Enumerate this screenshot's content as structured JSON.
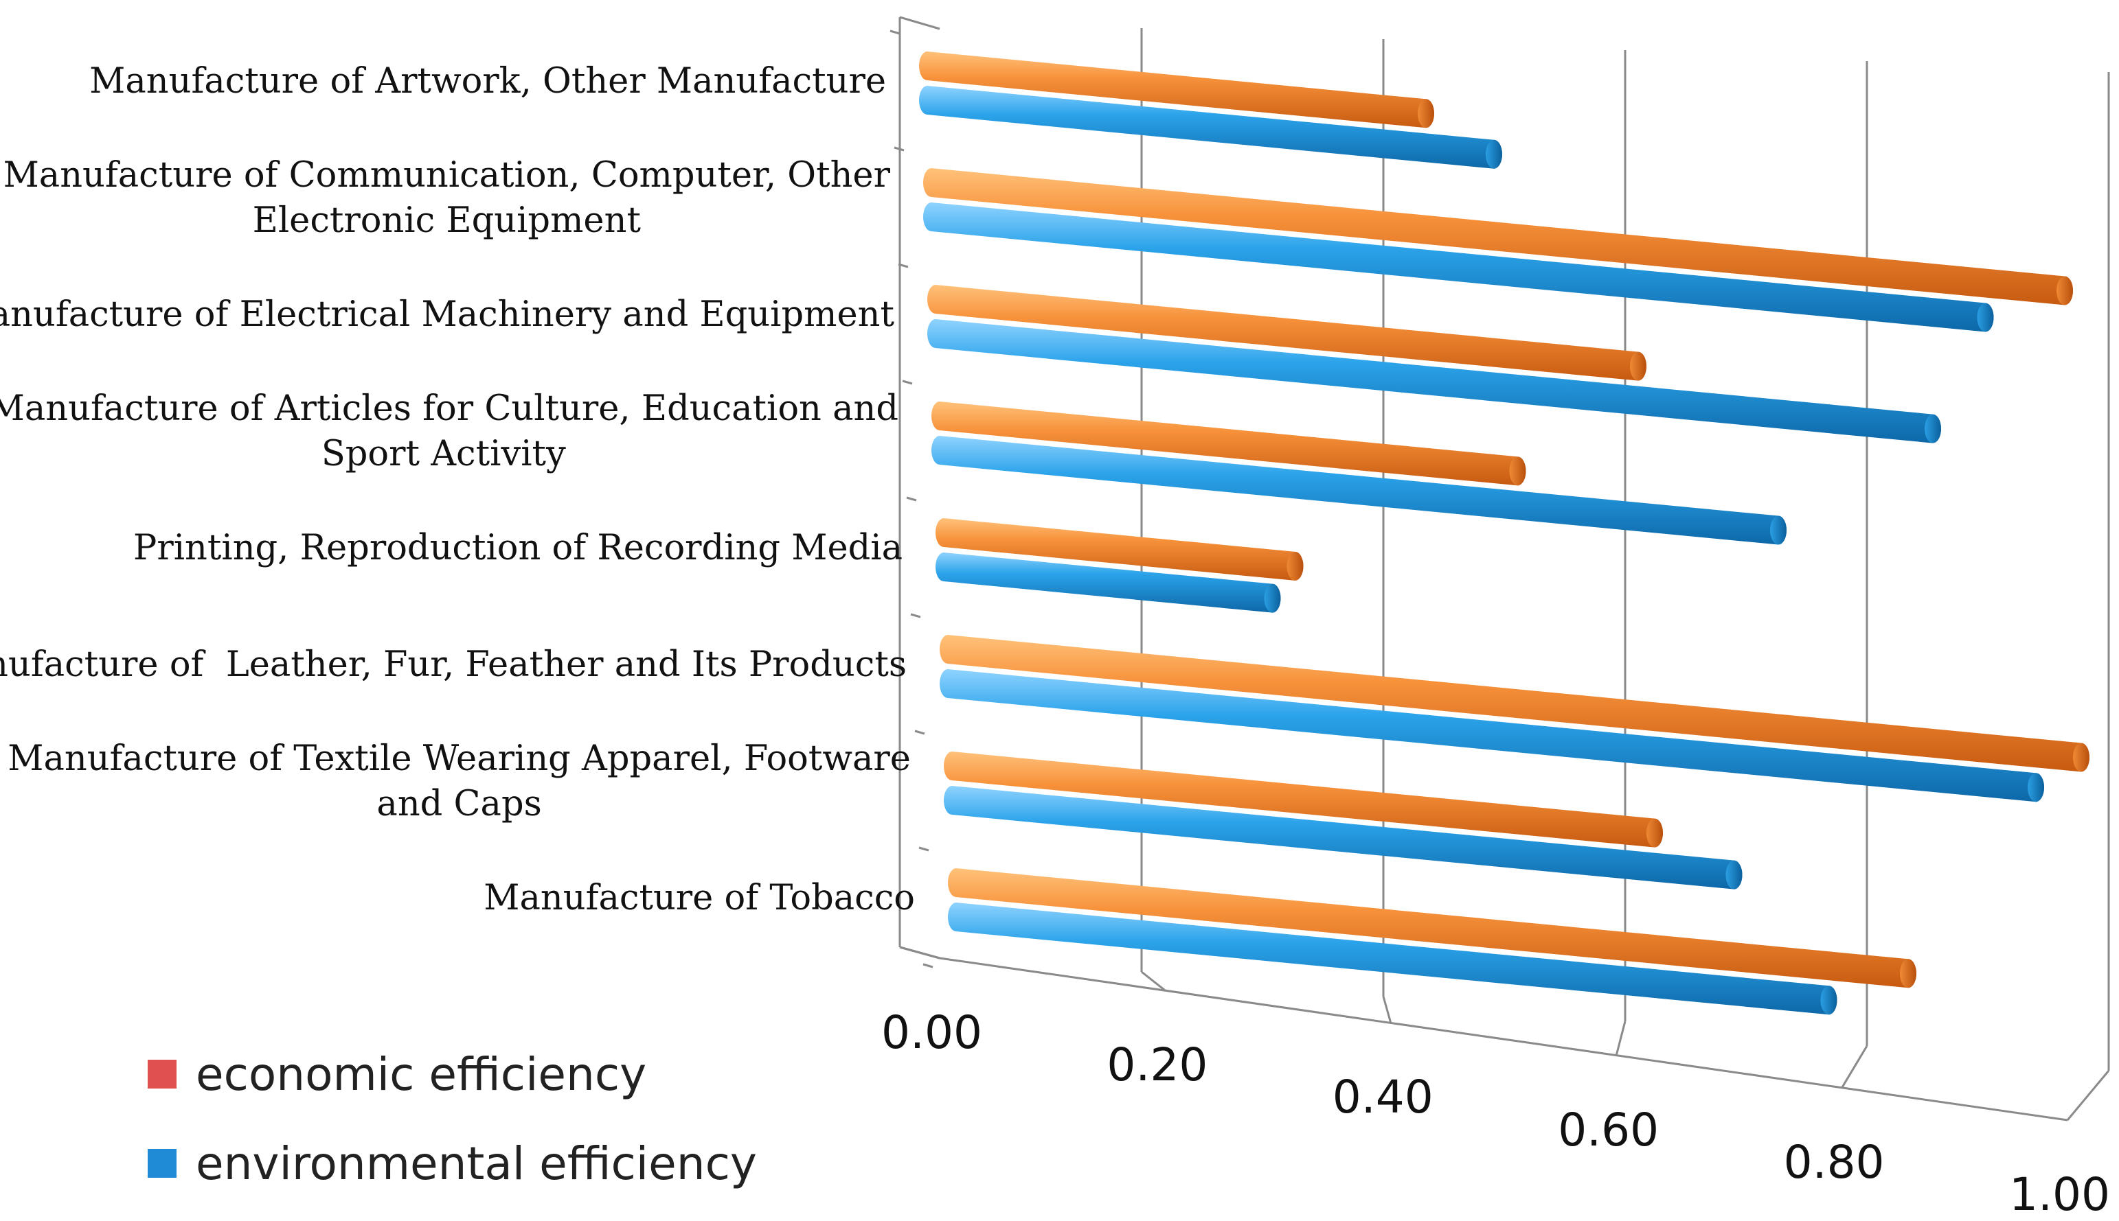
{
  "chart_data": {
    "type": "bar",
    "orientation": "horizontal",
    "style": "3d-cylinder",
    "title": "",
    "xlabel": "",
    "ylabel": "",
    "xlim": [
      0,
      1
    ],
    "grid": true,
    "legend_position": "bottom-left",
    "categories": [
      "Manufacture of Artwork, Other Manufacture",
      "Manufacture of Communication, Computer, Other\nElectronic Equipment",
      "Manufacture of Electrical Machinery and Equipment",
      "Manufacture of Articles for Culture, Education and\nSport Activity",
      "Printing, Reproduction of Recording Media",
      "Manufacture of  Leather, Fur, Feather and Its Products",
      "Manufacture of Textile Wearing Apparel, Footware\nand Caps",
      "Manufacture of Tobacco"
    ],
    "tick_labels": [
      "0.00",
      "0.20",
      "0.40",
      "0.60",
      "0.80",
      "1.00"
    ],
    "series": [
      {
        "name": "economic efficiency",
        "legend_color": "#e05050",
        "bar_color": "#f58a2e",
        "values": [
          0.44,
          1.0,
          0.62,
          0.51,
          0.31,
          1.0,
          0.62,
          0.84
        ]
      },
      {
        "name": "environmental efficiency",
        "legend_color": "#1f8bd6",
        "bar_color": "#2aa0e6",
        "values": [
          0.5,
          0.93,
          0.88,
          0.74,
          0.29,
          0.96,
          0.69,
          0.77
        ]
      }
    ]
  }
}
